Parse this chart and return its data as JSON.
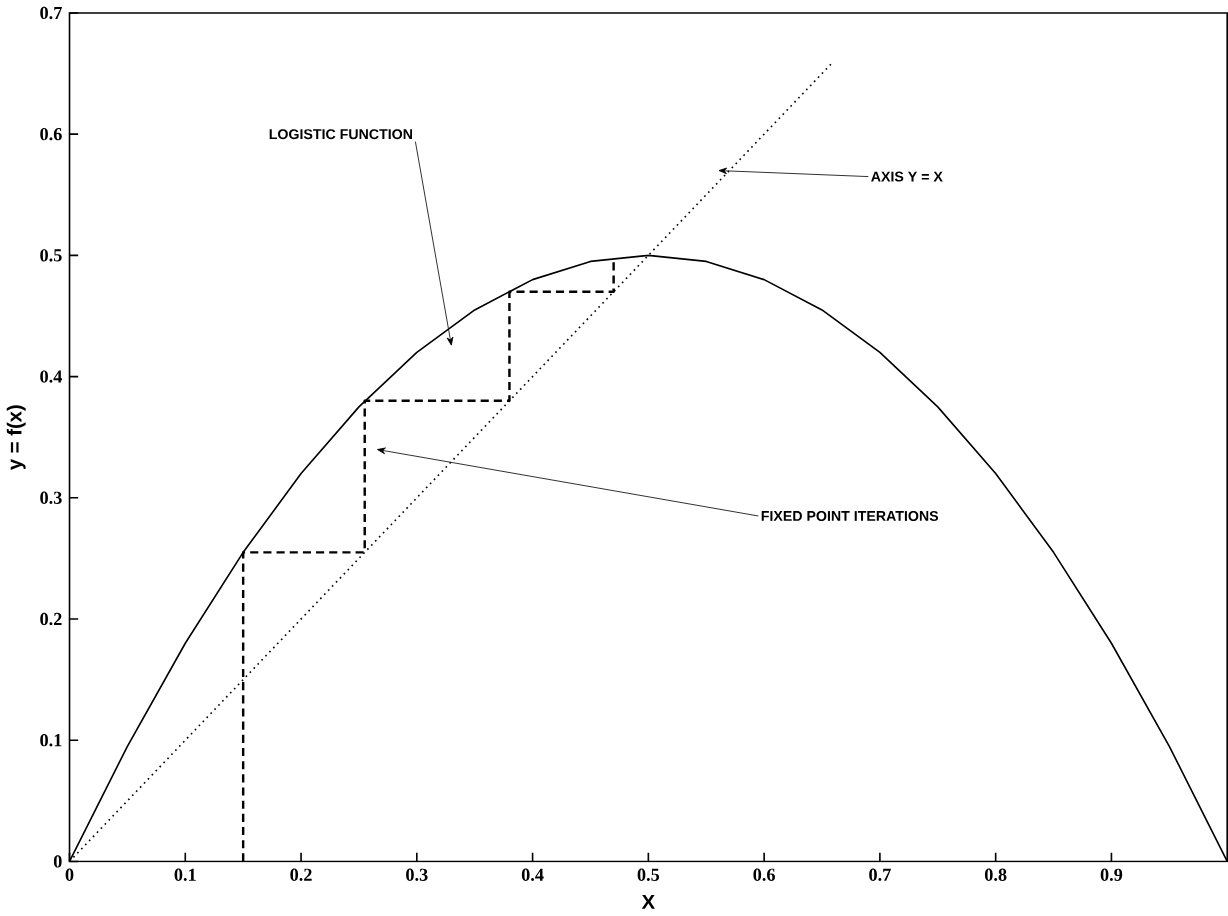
{
  "chart_data": {
    "type": "line",
    "xlabel": "X",
    "ylabel": "y = f(x)",
    "xlim": [
      0,
      1
    ],
    "ylim": [
      0,
      0.7
    ],
    "xticks": [
      0,
      0.1,
      0.2,
      0.3,
      0.4,
      0.5,
      0.6,
      0.7,
      0.8,
      0.9
    ],
    "yticks": [
      0,
      0.1,
      0.2,
      0.3,
      0.4,
      0.5,
      0.6,
      0.7
    ],
    "grid": false,
    "marker": "none",
    "series": [
      {
        "color": "#000000",
        "line_style": "solid",
        "x": [
          0,
          0.05,
          0.1,
          0.15,
          0.2,
          0.25,
          0.3,
          0.35,
          0.4,
          0.45,
          0.5,
          0.55,
          0.6,
          0.65,
          0.7,
          0.75,
          0.8,
          0.85,
          0.9,
          0.95,
          1
        ],
        "values": [
          0,
          0.095,
          0.18,
          0.255,
          0.32,
          0.375,
          0.42,
          0.455,
          0.48,
          0.495,
          0.5,
          0.495,
          0.48,
          0.455,
          0.42,
          0.375,
          0.32,
          0.255,
          0.18,
          0.095,
          0
        ]
      },
      {
        "color": "#000000",
        "line_style": "dotted",
        "x": [
          0,
          0.66
        ],
        "values": [
          0,
          0.66
        ]
      },
      {
        "color": "#000000",
        "line_style": "dashed",
        "x": [
          0.15,
          0.15,
          0.255,
          0.255,
          0.38,
          0.38,
          0.47,
          0.47
        ],
        "values": [
          0,
          0.255,
          0.255,
          0.38,
          0.38,
          0.47,
          0.47,
          0.498
        ]
      }
    ],
    "annotations": [
      "LOGISTIC FUNCTION",
      {
        "text": "AXIS Y = X",
        "x": 0.56,
        "y": 0.57
      },
      "FIXED POINT ITERATIONS"
    ]
  }
}
